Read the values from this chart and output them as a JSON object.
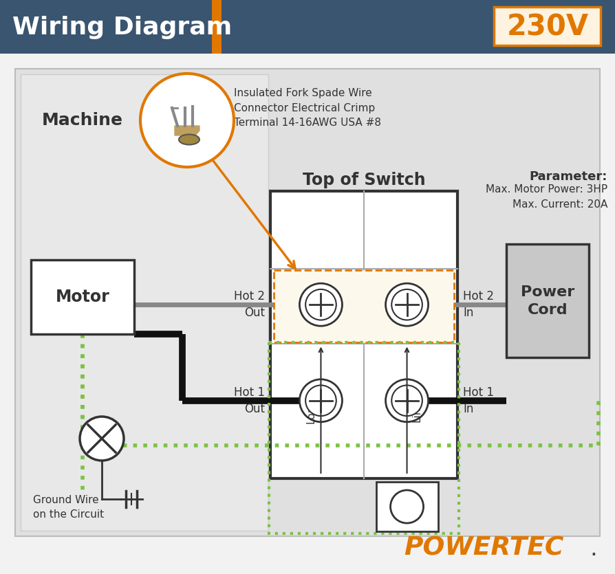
{
  "title": "Wiring Diagram",
  "voltage": "230V",
  "bg_color": "#f2f2f2",
  "header_bg": "#3a5570",
  "header_text_color": "#ffffff",
  "voltage_box_bg": "#fdf3e0",
  "voltage_text_color": "#e07800",
  "orange_color": "#e07800",
  "green_wire": "#7bc244",
  "switch_dashed_fill": "#fdf8ec",
  "connector_text": "Insulated Fork Spade Wire\nConnector Electrical Crimp\nTerminal 14-16AWG USA #8",
  "powertec_color": "#e07800",
  "machine_bg": "#e0e0e0",
  "wire_gray": "#888888",
  "wire_black": "#111111",
  "switch_outer_bg": "#ffffff",
  "param_label": "Parameter:",
  "param_body": "Max. Motor Power: 3HP\nMax. Current: 20A"
}
